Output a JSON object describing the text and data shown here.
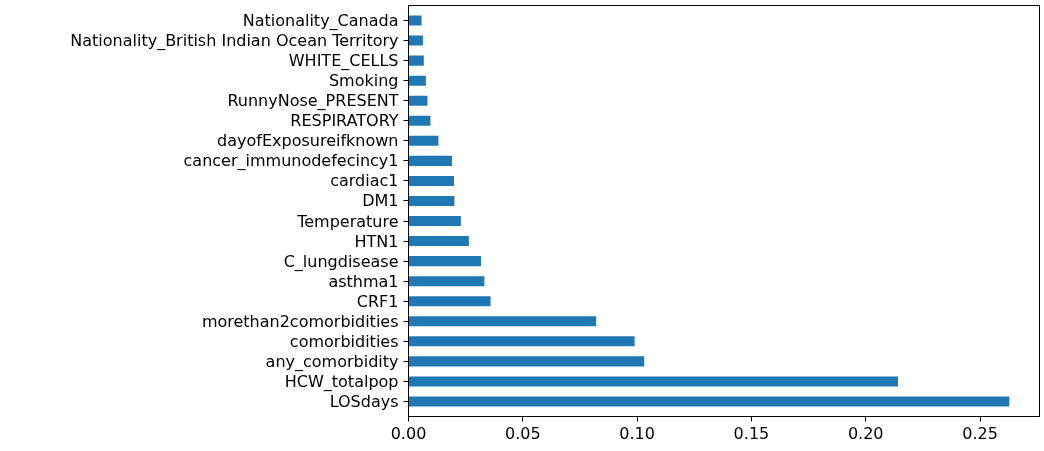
{
  "chart_data": {
    "type": "bar",
    "orientation": "horizontal",
    "categories": [
      "Nationality_Canada",
      "Nationality_British Indian Ocean Territory",
      "WHITE_CELLS",
      "Smoking",
      "RunnyNose_PRESENT",
      "RESPIRATORY",
      "dayofExposureifknown",
      "cancer_immunodefecincy1",
      "cardiac1",
      "DM1",
      "Temperature",
      "HTN1",
      "C_lungdisease",
      "asthma1",
      "CRF1",
      "morethan2comorbidities",
      "comorbidities",
      "any_comorbidity",
      "HCW_totalpop",
      "LOSdays"
    ],
    "values": [
      0.0057,
      0.0063,
      0.0067,
      0.0076,
      0.0083,
      0.0096,
      0.0131,
      0.019,
      0.0199,
      0.0201,
      0.0229,
      0.0264,
      0.0317,
      0.0332,
      0.0359,
      0.0821,
      0.0989,
      0.1031,
      0.2141,
      0.2628
    ],
    "color": "#1f77b4",
    "xlim": [
      0,
      0.276
    ],
    "xticks": [
      {
        "value": 0,
        "label": "0.00"
      },
      {
        "value": 0.05,
        "label": "0.05"
      },
      {
        "value": 0.1,
        "label": "0.10"
      },
      {
        "value": 0.15,
        "label": "0.15"
      },
      {
        "value": 0.2,
        "label": "0.20"
      },
      {
        "value": 0.25,
        "label": "0.25"
      }
    ],
    "grid": false
  }
}
